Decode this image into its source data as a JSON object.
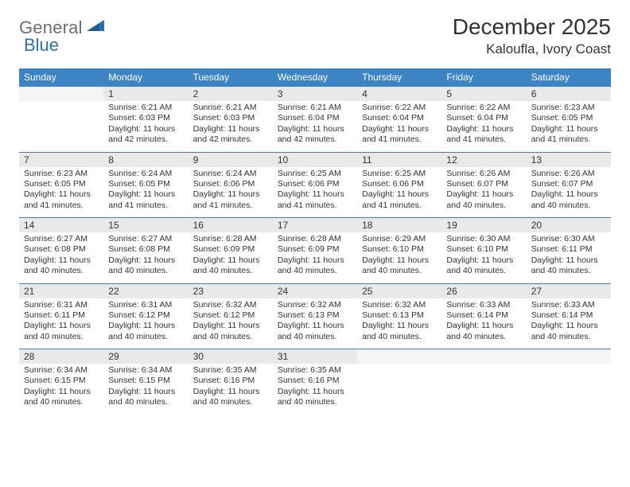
{
  "logo": {
    "text1": "General",
    "text2": "Blue"
  },
  "title": "December 2025",
  "location": "Kaloufla, Ivory Coast",
  "headers": [
    "Sunday",
    "Monday",
    "Tuesday",
    "Wednesday",
    "Thursday",
    "Friday",
    "Saturday"
  ],
  "colors": {
    "header_bg": "#3d84c4",
    "header_fg": "#ffffff",
    "num_bg": "#e9e9e9",
    "divider": "#3d84c4",
    "text": "#333333",
    "logo_gray": "#6d6d6d",
    "logo_blue": "#2f6fae"
  },
  "weeks": [
    {
      "nums": [
        "",
        "1",
        "2",
        "3",
        "4",
        "5",
        "6"
      ],
      "details": [
        "",
        "Sunrise: 6:21 AM\nSunset: 6:03 PM\nDaylight: 11 hours and 42 minutes.",
        "Sunrise: 6:21 AM\nSunset: 6:03 PM\nDaylight: 11 hours and 42 minutes.",
        "Sunrise: 6:21 AM\nSunset: 6:04 PM\nDaylight: 11 hours and 42 minutes.",
        "Sunrise: 6:22 AM\nSunset: 6:04 PM\nDaylight: 11 hours and 41 minutes.",
        "Sunrise: 6:22 AM\nSunset: 6:04 PM\nDaylight: 11 hours and 41 minutes.",
        "Sunrise: 6:23 AM\nSunset: 6:05 PM\nDaylight: 11 hours and 41 minutes."
      ]
    },
    {
      "nums": [
        "7",
        "8",
        "9",
        "10",
        "11",
        "12",
        "13"
      ],
      "details": [
        "Sunrise: 6:23 AM\nSunset: 6:05 PM\nDaylight: 11 hours and 41 minutes.",
        "Sunrise: 6:24 AM\nSunset: 6:05 PM\nDaylight: 11 hours and 41 minutes.",
        "Sunrise: 6:24 AM\nSunset: 6:06 PM\nDaylight: 11 hours and 41 minutes.",
        "Sunrise: 6:25 AM\nSunset: 6:06 PM\nDaylight: 11 hours and 41 minutes.",
        "Sunrise: 6:25 AM\nSunset: 6:06 PM\nDaylight: 11 hours and 41 minutes.",
        "Sunrise: 6:26 AM\nSunset: 6:07 PM\nDaylight: 11 hours and 40 minutes.",
        "Sunrise: 6:26 AM\nSunset: 6:07 PM\nDaylight: 11 hours and 40 minutes."
      ]
    },
    {
      "nums": [
        "14",
        "15",
        "16",
        "17",
        "18",
        "19",
        "20"
      ],
      "details": [
        "Sunrise: 6:27 AM\nSunset: 6:08 PM\nDaylight: 11 hours and 40 minutes.",
        "Sunrise: 6:27 AM\nSunset: 6:08 PM\nDaylight: 11 hours and 40 minutes.",
        "Sunrise: 6:28 AM\nSunset: 6:09 PM\nDaylight: 11 hours and 40 minutes.",
        "Sunrise: 6:28 AM\nSunset: 6:09 PM\nDaylight: 11 hours and 40 minutes.",
        "Sunrise: 6:29 AM\nSunset: 6:10 PM\nDaylight: 11 hours and 40 minutes.",
        "Sunrise: 6:30 AM\nSunset: 6:10 PM\nDaylight: 11 hours and 40 minutes.",
        "Sunrise: 6:30 AM\nSunset: 6:11 PM\nDaylight: 11 hours and 40 minutes."
      ]
    },
    {
      "nums": [
        "21",
        "22",
        "23",
        "24",
        "25",
        "26",
        "27"
      ],
      "details": [
        "Sunrise: 6:31 AM\nSunset: 6:11 PM\nDaylight: 11 hours and 40 minutes.",
        "Sunrise: 6:31 AM\nSunset: 6:12 PM\nDaylight: 11 hours and 40 minutes.",
        "Sunrise: 6:32 AM\nSunset: 6:12 PM\nDaylight: 11 hours and 40 minutes.",
        "Sunrise: 6:32 AM\nSunset: 6:13 PM\nDaylight: 11 hours and 40 minutes.",
        "Sunrise: 6:32 AM\nSunset: 6:13 PM\nDaylight: 11 hours and 40 minutes.",
        "Sunrise: 6:33 AM\nSunset: 6:14 PM\nDaylight: 11 hours and 40 minutes.",
        "Sunrise: 6:33 AM\nSunset: 6:14 PM\nDaylight: 11 hours and 40 minutes."
      ]
    },
    {
      "nums": [
        "28",
        "29",
        "30",
        "31",
        "",
        "",
        ""
      ],
      "details": [
        "Sunrise: 6:34 AM\nSunset: 6:15 PM\nDaylight: 11 hours and 40 minutes.",
        "Sunrise: 6:34 AM\nSunset: 6:15 PM\nDaylight: 11 hours and 40 minutes.",
        "Sunrise: 6:35 AM\nSunset: 6:16 PM\nDaylight: 11 hours and 40 minutes.",
        "Sunrise: 6:35 AM\nSunset: 6:16 PM\nDaylight: 11 hours and 40 minutes.",
        "",
        "",
        ""
      ]
    }
  ]
}
